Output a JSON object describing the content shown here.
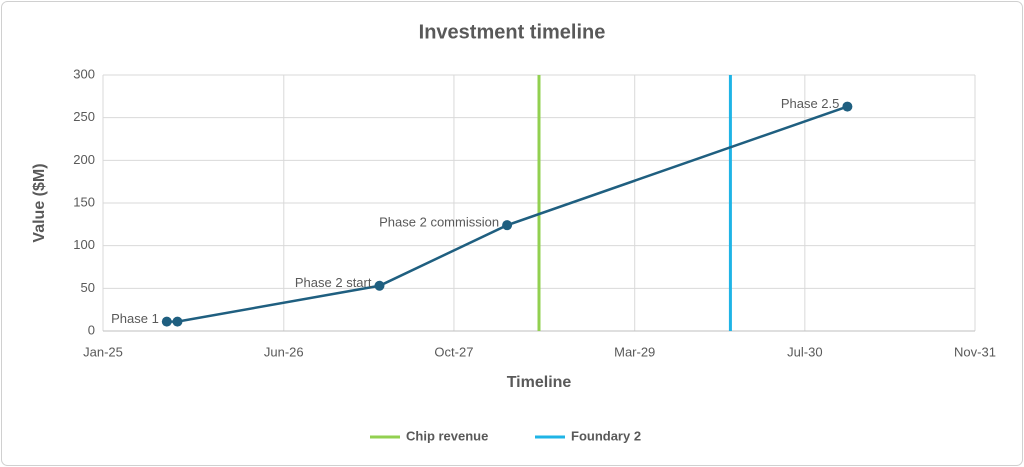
{
  "chart_data": {
    "type": "line",
    "title": "Investment timeline",
    "x_label": "Timeline",
    "y_label": "Value ($M)",
    "x": [
      "2025-07",
      "2025-08",
      "2027-03",
      "2028-03",
      "2030-11"
    ],
    "values": [
      11,
      11,
      53,
      124,
      263
    ],
    "point_labels": [
      "Phase 1",
      null,
      "Phase 2 start",
      "Phase 2 commission",
      "Phase 2.5"
    ],
    "color": "#1f5f80",
    "markers": [
      {
        "name": "Chip revenue",
        "color": "#92d050",
        "x": "2028-06"
      },
      {
        "name": "Foundary 2",
        "color": "#1fb4e6",
        "x": "2029-12"
      }
    ],
    "xlim": [
      "2025-01",
      "2031-11"
    ],
    "xticks": [
      {
        "value": "2025-01",
        "label": "Jan-25"
      },
      {
        "value": "2026-06",
        "label": "Jun-26"
      },
      {
        "value": "2027-10",
        "label": "Oct-27"
      },
      {
        "value": "2029-03",
        "label": "Mar-29"
      },
      {
        "value": "2030-07",
        "label": "Jul-30"
      },
      {
        "value": "2031-11",
        "label": "Nov-31"
      }
    ],
    "ylim": [
      0,
      300
    ],
    "yticks": [
      0,
      50,
      100,
      150,
      200,
      250,
      300
    ],
    "grid": true,
    "legend": "bottom"
  }
}
